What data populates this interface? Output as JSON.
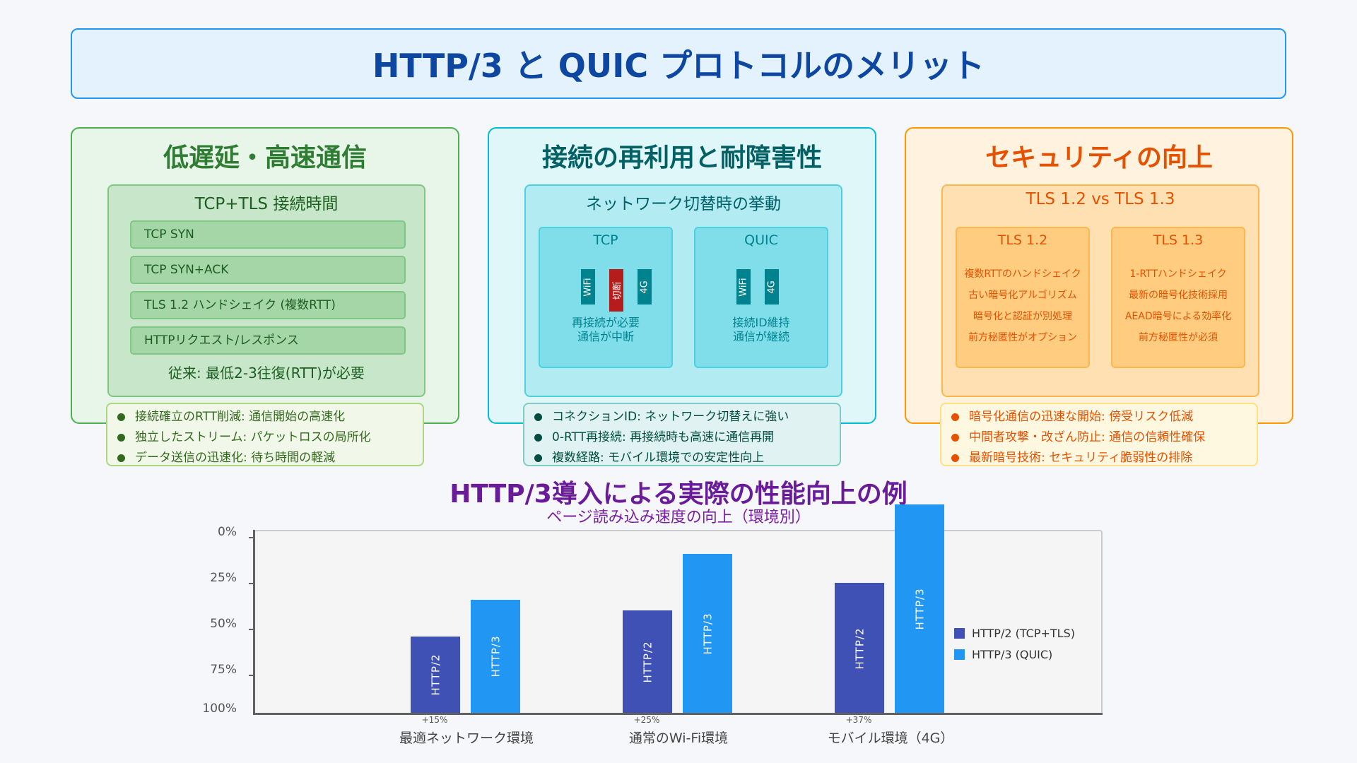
{
  "title": "HTTP/3 と QUIC プロトコルのメリット",
  "colors": {
    "title": "#0d47a1",
    "card_latency": "#4caf50",
    "card_reuse": "#00bcd4",
    "card_security": "#ff9800",
    "chart_title": "#6a1b9a",
    "http2": "#3f51b5",
    "http3": "#2196f3",
    "disconnect": "#b71c1c"
  },
  "cards": {
    "latency": {
      "heading": "低遅延・高速通信",
      "inner_title": "TCP+TLS 接続時間",
      "steps": [
        "TCP SYN",
        "TCP SYN+ACK",
        "TLS 1.2 ハンドシェイク (複数RTT)",
        "HTTPリクエスト/レスポンス"
      ],
      "note": "従来: 最低2-3往復(RTT)が必要",
      "bullets": [
        "接続確立のRTT削減: 通信開始の高速化",
        "独立したストリーム: パケットロスの局所化",
        "データ送信の迅速化: 待ち時間の軽減"
      ]
    },
    "reuse": {
      "heading": "接続の再利用と耐障害性",
      "inner_title": "ネットワーク切替時の挙動",
      "tcp": {
        "title": "TCP",
        "bars": [
          "WiFi",
          "切断",
          "4G"
        ],
        "caption_1": "再接続が必要",
        "caption_2": "通信が中断"
      },
      "quic": {
        "title": "QUIC",
        "bars": [
          "WiFi",
          "4G"
        ],
        "caption_1": "接続ID維持",
        "caption_2": "通信が継続"
      },
      "bullets": [
        "コネクションID: ネットワーク切替えに強い",
        "0-RTT再接続: 再接続時も高速に通信再開",
        "複数経路: モバイル環境での安定性向上"
      ]
    },
    "security": {
      "heading": "セキュリティの向上",
      "inner_title": "TLS 1.2 vs TLS 1.3",
      "tls12": {
        "title": "TLS 1.2",
        "items": [
          "複数RTTのハンドシェイク",
          "古い暗号化アルゴリズム",
          "暗号化と認証が別処理",
          "前方秘匿性がオプション"
        ]
      },
      "tls13": {
        "title": "TLS 1.3",
        "items": [
          "1-RTTハンドシェイク",
          "最新の暗号化技術採用",
          "AEAD暗号による効率化",
          "前方秘匿性が必須"
        ]
      },
      "bullets": [
        "暗号化通信の迅速な開始: 傍受リスク低減",
        "中間者攻撃・改ざん防止: 通信の信頼性確保",
        "最新暗号技術: セキュリティ脆弱性の排除"
      ]
    }
  },
  "chart_data": {
    "type": "bar",
    "title": "HTTP/3導入による実際の性能向上の例",
    "subtitle": "ページ読み込み速度の向上（環境別）",
    "categories": [
      "最適ネットワーク環境",
      "通常のWi-Fi環境",
      "モバイル環境（4G）"
    ],
    "improvement_labels": [
      "+15%",
      "+25%",
      "+37%"
    ],
    "series": [
      {
        "name": "HTTP/2 (TCP+TLS)",
        "bar_label": "HTTP/2",
        "values": [
          42,
          56,
          71
        ]
      },
      {
        "name": "HTTP/3 (QUIC)",
        "bar_label": "HTTP/3",
        "values": [
          62,
          87,
          114
        ]
      }
    ],
    "y_ticks": [
      "0%",
      "25%",
      "50%",
      "75%",
      "100%"
    ],
    "y_axis_inverted": true,
    "ylim": [
      0,
      100
    ],
    "grid": false,
    "legend_position": "right"
  }
}
